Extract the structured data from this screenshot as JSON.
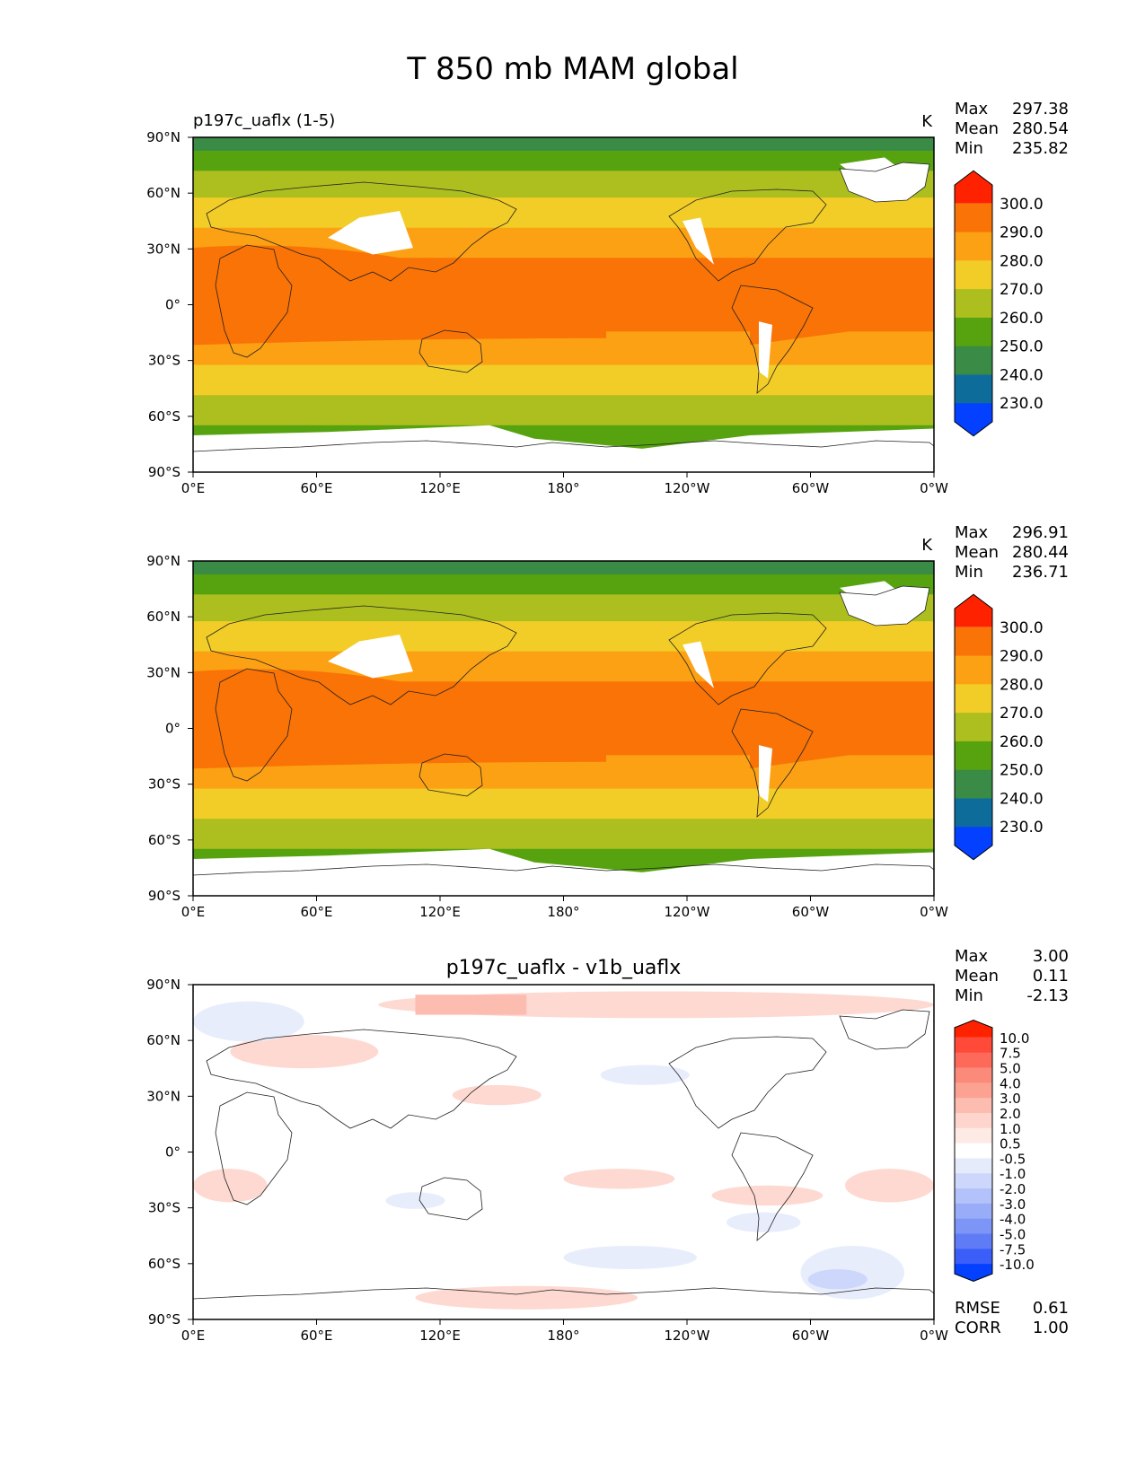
{
  "figure_title": "T 850 mb MAM global",
  "colors": {
    "frame": "#000000",
    "land_outline": "#222222",
    "missing": "#ffffff"
  },
  "chart_data": [
    {
      "type": "heatmap",
      "title": "p197c_uaflx (1-5)",
      "units": "K",
      "stats": [
        {
          "label": "Max",
          "value": "297.38"
        },
        {
          "label": "Mean",
          "value": "280.54"
        },
        {
          "label": "Min",
          "value": "235.82"
        }
      ],
      "x_ticks": [
        "0°E",
        "60°E",
        "120°E",
        "180°",
        "120°W",
        "60°W",
        "0°W"
      ],
      "y_ticks": [
        "90°N",
        "60°N",
        "30°N",
        "0°",
        "30°S",
        "60°S",
        "90°S"
      ],
      "xlim": [
        0,
        360
      ],
      "ylim": [
        -90,
        90
      ],
      "colorbar": {
        "labels": [
          "300.0",
          "290.0",
          "280.0",
          "270.0",
          "260.0",
          "250.0",
          "240.0",
          "230.0"
        ],
        "colors": [
          "#ff2200",
          "#f97306",
          "#fca114",
          "#f2cd27",
          "#acbf1f",
          "#56a30f",
          "#3a8b45",
          "#0e6c9a",
          "#0340ff"
        ],
        "extend": "both"
      }
    },
    {
      "type": "heatmap",
      "title": "",
      "units": "K",
      "stats": [
        {
          "label": "Max",
          "value": "296.91"
        },
        {
          "label": "Mean",
          "value": "280.44"
        },
        {
          "label": "Min",
          "value": "236.71"
        }
      ],
      "x_ticks": [
        "0°E",
        "60°E",
        "120°E",
        "180°",
        "120°W",
        "60°W",
        "0°W"
      ],
      "y_ticks": [
        "90°N",
        "60°N",
        "30°N",
        "0°",
        "30°S",
        "60°S",
        "90°S"
      ],
      "xlim": [
        0,
        360
      ],
      "ylim": [
        -90,
        90
      ],
      "colorbar": {
        "labels": [
          "300.0",
          "290.0",
          "280.0",
          "270.0",
          "260.0",
          "250.0",
          "240.0",
          "230.0"
        ],
        "colors": [
          "#ff2200",
          "#f97306",
          "#fca114",
          "#f2cd27",
          "#acbf1f",
          "#56a30f",
          "#3a8b45",
          "#0e6c9a",
          "#0340ff"
        ],
        "extend": "both"
      }
    },
    {
      "type": "heatmap",
      "title": "p197c_uaflx - v1b_uaflx",
      "units": "",
      "stats": [
        {
          "label": "Max",
          "value": "3.00"
        },
        {
          "label": "Mean",
          "value": "0.11"
        },
        {
          "label": "Min",
          "value": "-2.13"
        }
      ],
      "extra_stats": [
        {
          "label": "RMSE",
          "value": "0.61"
        },
        {
          "label": "CORR",
          "value": "1.00"
        }
      ],
      "x_ticks": [
        "0°E",
        "60°E",
        "120°E",
        "180°",
        "120°W",
        "60°W",
        "0°W"
      ],
      "y_ticks": [
        "90°N",
        "60°N",
        "30°N",
        "0°",
        "30°S",
        "60°S",
        "90°S"
      ],
      "xlim": [
        0,
        360
      ],
      "ylim": [
        -90,
        90
      ],
      "colorbar": {
        "labels": [
          "10.0",
          "7.5",
          "5.0",
          "4.0",
          "3.0",
          "2.0",
          "1.0",
          "0.5",
          "-0.5",
          "-1.0",
          "-2.0",
          "-3.0",
          "-4.0",
          "-5.0",
          "-7.5",
          "-10.0"
        ],
        "colors": [
          "#ff2200",
          "#ff4a3a",
          "#fd6a5a",
          "#fb8a7a",
          "#fca292",
          "#fcbcaf",
          "#fdd5cc",
          "#feeae5",
          "#ffffff",
          "#e6ebfc",
          "#cdd7fb",
          "#b3c2fa",
          "#99acf8",
          "#7d95f7",
          "#5f7cf6",
          "#3b5ef8",
          "#0340ff"
        ],
        "extend": "both"
      }
    }
  ]
}
